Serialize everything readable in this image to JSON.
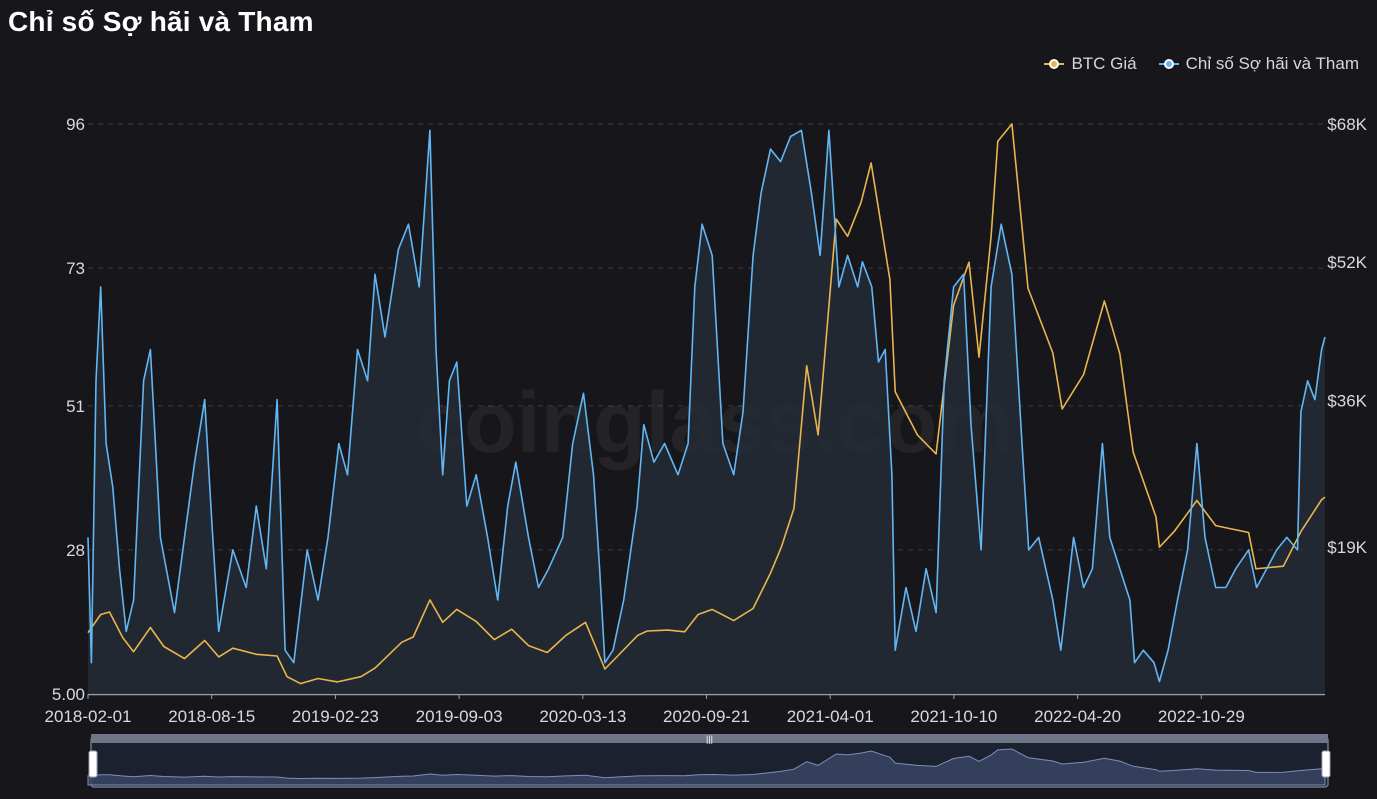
{
  "page": {
    "title": "Chỉ số Sợ hãi và Tham",
    "watermark": "coinglass.com"
  },
  "colors": {
    "background": "#16161b",
    "btc": "#e9b54c",
    "fgi": "#62b6f3",
    "fgi_fill": "#232c36",
    "grid": "#3a3d45",
    "axis": "#9aa0aa"
  },
  "legend": [
    {
      "label": "BTC Giá",
      "color": "#e9b54c"
    },
    {
      "label": "Chỉ số Sợ hãi và Tham",
      "color": "#62b6f3"
    }
  ],
  "chart_data": {
    "type": "line",
    "title": "Chỉ số Sợ hãi và Tham",
    "x_tick_labels": [
      "2018-02-01",
      "2018-08-15",
      "2019-02-23",
      "2019-09-03",
      "2020-03-13",
      "2020-09-21",
      "2021-04-01",
      "2021-10-10",
      "2022-04-20",
      "2022-10-29"
    ],
    "x_range": [
      "2018-02-01",
      "2023-02-20"
    ],
    "y_left": {
      "ticks": [
        "5.00",
        "28",
        "51",
        "73",
        "96"
      ],
      "min": 5,
      "max": 96
    },
    "y_right": {
      "ticks": [
        "$19K",
        "$36K",
        "$52K",
        "$68K"
      ],
      "min": 2000,
      "max": 68000
    },
    "grid": "horizontal dashed",
    "legend_position": "top-right",
    "series": [
      {
        "name": "BTC Giá",
        "axis": "right",
        "points": [
          [
            "2018-02-01",
            9100
          ],
          [
            "2018-02-20",
            11200
          ],
          [
            "2018-03-05",
            11500
          ],
          [
            "2018-03-25",
            8500
          ],
          [
            "2018-04-10",
            6900
          ],
          [
            "2018-05-05",
            9700
          ],
          [
            "2018-05-25",
            7500
          ],
          [
            "2018-06-25",
            6100
          ],
          [
            "2018-07-25",
            8200
          ],
          [
            "2018-08-15",
            6300
          ],
          [
            "2018-09-05",
            7300
          ],
          [
            "2018-10-10",
            6600
          ],
          [
            "2018-11-10",
            6400
          ],
          [
            "2018-11-25",
            4000
          ],
          [
            "2018-12-15",
            3200
          ],
          [
            "2019-01-10",
            3800
          ],
          [
            "2019-02-08",
            3400
          ],
          [
            "2019-03-15",
            4000
          ],
          [
            "2019-04-05",
            5000
          ],
          [
            "2019-05-15",
            8000
          ],
          [
            "2019-06-01",
            8600
          ],
          [
            "2019-06-26",
            12900
          ],
          [
            "2019-07-15",
            10300
          ],
          [
            "2019-08-05",
            11800
          ],
          [
            "2019-09-03",
            10400
          ],
          [
            "2019-09-30",
            8300
          ],
          [
            "2019-10-26",
            9500
          ],
          [
            "2019-11-20",
            7600
          ],
          [
            "2019-12-18",
            6800
          ],
          [
            "2020-01-15",
            8800
          ],
          [
            "2020-02-13",
            10300
          ],
          [
            "2020-03-13",
            4900
          ],
          [
            "2020-04-01",
            6400
          ],
          [
            "2020-05-01",
            8800
          ],
          [
            "2020-05-15",
            9300
          ],
          [
            "2020-06-15",
            9400
          ],
          [
            "2020-07-10",
            9200
          ],
          [
            "2020-07-30",
            11200
          ],
          [
            "2020-08-20",
            11800
          ],
          [
            "2020-09-21",
            10500
          ],
          [
            "2020-10-20",
            11900
          ],
          [
            "2020-11-15",
            16000
          ],
          [
            "2020-12-01",
            19000
          ],
          [
            "2020-12-20",
            23500
          ],
          [
            "2021-01-08",
            40000
          ],
          [
            "2021-01-25",
            32000
          ],
          [
            "2021-02-21",
            57000
          ],
          [
            "2021-03-10",
            55000
          ],
          [
            "2021-03-30",
            58900
          ],
          [
            "2021-04-14",
            63500
          ],
          [
            "2021-05-12",
            50000
          ],
          [
            "2021-05-20",
            37000
          ],
          [
            "2021-06-22",
            32000
          ],
          [
            "2021-07-20",
            29800
          ],
          [
            "2021-08-15",
            47000
          ],
          [
            "2021-09-07",
            52000
          ],
          [
            "2021-09-22",
            41000
          ],
          [
            "2021-10-10",
            55000
          ],
          [
            "2021-10-20",
            66000
          ],
          [
            "2021-11-10",
            68000
          ],
          [
            "2021-12-04",
            49000
          ],
          [
            "2022-01-10",
            41500
          ],
          [
            "2022-01-24",
            35000
          ],
          [
            "2022-02-25",
            39000
          ],
          [
            "2022-03-28",
            47500
          ],
          [
            "2022-04-20",
            41400
          ],
          [
            "2022-05-10",
            30000
          ],
          [
            "2022-06-13",
            22500
          ],
          [
            "2022-06-18",
            19000
          ],
          [
            "2022-07-10",
            20800
          ],
          [
            "2022-08-13",
            24400
          ],
          [
            "2022-09-10",
            21500
          ],
          [
            "2022-10-29",
            20700
          ],
          [
            "2022-11-09",
            16500
          ],
          [
            "2022-12-20",
            16800
          ],
          [
            "2023-01-15",
            20800
          ],
          [
            "2023-02-15",
            24500
          ],
          [
            "2023-02-20",
            24800
          ]
        ]
      },
      {
        "name": "Chỉ số Sợ hãi và Tham",
        "axis": "left",
        "points": [
          [
            "2018-02-01",
            30
          ],
          [
            "2018-02-06",
            10
          ],
          [
            "2018-02-13",
            55
          ],
          [
            "2018-02-20",
            70
          ],
          [
            "2018-02-28",
            45
          ],
          [
            "2018-03-10",
            38
          ],
          [
            "2018-03-20",
            25
          ],
          [
            "2018-03-30",
            15
          ],
          [
            "2018-04-10",
            20
          ],
          [
            "2018-04-25",
            55
          ],
          [
            "2018-05-05",
            60
          ],
          [
            "2018-05-20",
            30
          ],
          [
            "2018-06-10",
            18
          ],
          [
            "2018-06-25",
            30
          ],
          [
            "2018-07-10",
            42
          ],
          [
            "2018-07-25",
            52
          ],
          [
            "2018-08-05",
            32
          ],
          [
            "2018-08-15",
            15
          ],
          [
            "2018-09-05",
            28
          ],
          [
            "2018-09-25",
            22
          ],
          [
            "2018-10-10",
            35
          ],
          [
            "2018-10-25",
            25
          ],
          [
            "2018-11-10",
            52
          ],
          [
            "2018-11-22",
            12
          ],
          [
            "2018-12-05",
            10
          ],
          [
            "2018-12-25",
            28
          ],
          [
            "2019-01-10",
            20
          ],
          [
            "2019-01-25",
            30
          ],
          [
            "2019-02-10",
            45
          ],
          [
            "2019-02-23",
            40
          ],
          [
            "2019-03-10",
            60
          ],
          [
            "2019-03-25",
            55
          ],
          [
            "2019-04-05",
            72
          ],
          [
            "2019-04-20",
            62
          ],
          [
            "2019-05-10",
            76
          ],
          [
            "2019-05-25",
            80
          ],
          [
            "2019-06-10",
            70
          ],
          [
            "2019-06-26",
            95
          ],
          [
            "2019-07-05",
            60
          ],
          [
            "2019-07-15",
            40
          ],
          [
            "2019-07-25",
            55
          ],
          [
            "2019-08-05",
            58
          ],
          [
            "2019-08-20",
            35
          ],
          [
            "2019-09-03",
            40
          ],
          [
            "2019-09-20",
            30
          ],
          [
            "2019-10-05",
            20
          ],
          [
            "2019-10-20",
            35
          ],
          [
            "2019-11-01",
            42
          ],
          [
            "2019-11-20",
            30
          ],
          [
            "2019-12-05",
            22
          ],
          [
            "2019-12-20",
            25
          ],
          [
            "2020-01-10",
            30
          ],
          [
            "2020-01-25",
            45
          ],
          [
            "2020-02-10",
            53
          ],
          [
            "2020-02-25",
            40
          ],
          [
            "2020-03-05",
            25
          ],
          [
            "2020-03-13",
            10
          ],
          [
            "2020-03-25",
            12
          ],
          [
            "2020-04-10",
            20
          ],
          [
            "2020-04-30",
            35
          ],
          [
            "2020-05-10",
            48
          ],
          [
            "2020-05-25",
            42
          ],
          [
            "2020-06-10",
            45
          ],
          [
            "2020-06-30",
            40
          ],
          [
            "2020-07-15",
            45
          ],
          [
            "2020-07-25",
            70
          ],
          [
            "2020-08-05",
            80
          ],
          [
            "2020-08-20",
            75
          ],
          [
            "2020-09-05",
            45
          ],
          [
            "2020-09-21",
            40
          ],
          [
            "2020-10-05",
            50
          ],
          [
            "2020-10-20",
            75
          ],
          [
            "2020-11-01",
            85
          ],
          [
            "2020-11-15",
            92
          ],
          [
            "2020-11-30",
            90
          ],
          [
            "2020-12-15",
            94
          ],
          [
            "2020-12-31",
            95
          ],
          [
            "2021-01-15",
            85
          ],
          [
            "2021-01-28",
            75
          ],
          [
            "2021-02-10",
            95
          ],
          [
            "2021-02-25",
            70
          ],
          [
            "2021-03-10",
            75
          ],
          [
            "2021-03-25",
            70
          ],
          [
            "2021-04-01",
            74
          ],
          [
            "2021-04-15",
            70
          ],
          [
            "2021-04-25",
            58
          ],
          [
            "2021-05-05",
            60
          ],
          [
            "2021-05-15",
            40
          ],
          [
            "2021-05-20",
            12
          ],
          [
            "2021-06-05",
            22
          ],
          [
            "2021-06-20",
            15
          ],
          [
            "2021-07-05",
            25
          ],
          [
            "2021-07-20",
            18
          ],
          [
            "2021-08-01",
            55
          ],
          [
            "2021-08-15",
            70
          ],
          [
            "2021-08-30",
            72
          ],
          [
            "2021-09-10",
            48
          ],
          [
            "2021-09-25",
            28
          ],
          [
            "2021-10-10",
            70
          ],
          [
            "2021-10-25",
            80
          ],
          [
            "2021-11-10",
            72
          ],
          [
            "2021-11-25",
            45
          ],
          [
            "2021-12-05",
            28
          ],
          [
            "2021-12-20",
            30
          ],
          [
            "2022-01-10",
            20
          ],
          [
            "2022-01-22",
            12
          ],
          [
            "2022-02-10",
            30
          ],
          [
            "2022-02-25",
            22
          ],
          [
            "2022-03-10",
            25
          ],
          [
            "2022-03-25",
            45
          ],
          [
            "2022-04-05",
            30
          ],
          [
            "2022-04-20",
            25
          ],
          [
            "2022-05-05",
            20
          ],
          [
            "2022-05-12",
            10
          ],
          [
            "2022-05-25",
            12
          ],
          [
            "2022-06-10",
            10
          ],
          [
            "2022-06-18",
            7
          ],
          [
            "2022-07-01",
            12
          ],
          [
            "2022-07-15",
            20
          ],
          [
            "2022-07-30",
            28
          ],
          [
            "2022-08-13",
            45
          ],
          [
            "2022-08-25",
            30
          ],
          [
            "2022-09-10",
            22
          ],
          [
            "2022-09-25",
            22
          ],
          [
            "2022-10-10",
            25
          ],
          [
            "2022-10-29",
            28
          ],
          [
            "2022-11-10",
            22
          ],
          [
            "2022-11-25",
            25
          ],
          [
            "2022-12-10",
            28
          ],
          [
            "2022-12-25",
            30
          ],
          [
            "2023-01-10",
            28
          ],
          [
            "2023-01-15",
            50
          ],
          [
            "2023-01-25",
            55
          ],
          [
            "2023-02-05",
            52
          ],
          [
            "2023-02-15",
            60
          ],
          [
            "2023-02-20",
            62
          ]
        ]
      }
    ]
  }
}
